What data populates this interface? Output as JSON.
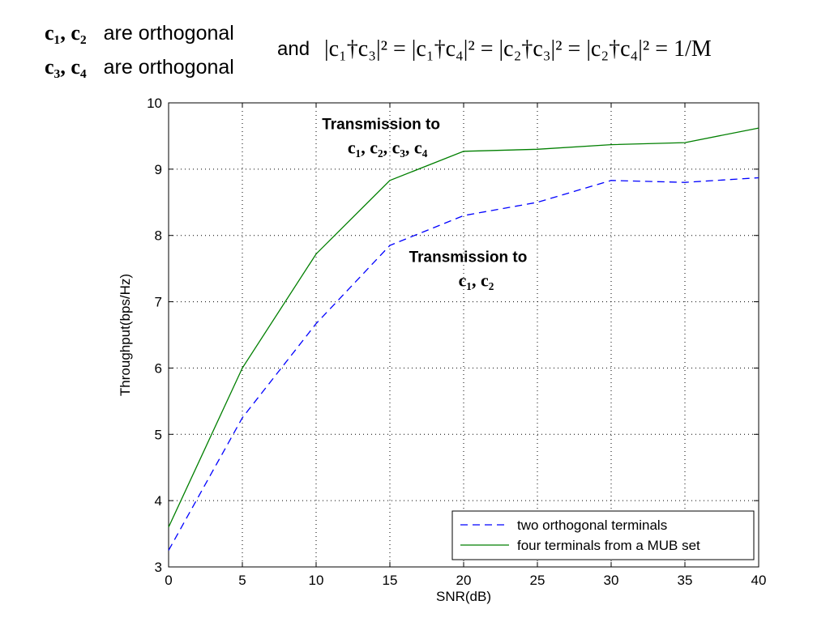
{
  "header": {
    "line1_vectors": "c₁, c₂",
    "line1_text": "are orthogonal",
    "line2_vectors": "c₃, c₄",
    "line2_text": "are orthogonal",
    "and_text": "and",
    "equation": "|c₁†c₃|² = |c₁†c₄|² = |c₂†c₃|² = |c₂†c₄|² = 1/M"
  },
  "chart_data": {
    "type": "line",
    "title": "",
    "xlabel": "SNR(dB)",
    "ylabel": "Throughput(bps/Hz)",
    "xlim": [
      0,
      40
    ],
    "ylim": [
      3,
      10
    ],
    "xticks": [
      0,
      5,
      10,
      15,
      20,
      25,
      30,
      35,
      40
    ],
    "yticks": [
      3,
      4,
      5,
      6,
      7,
      8,
      9,
      10
    ],
    "grid": true,
    "legend_position": "bottom-right",
    "x": [
      0,
      5,
      10,
      15,
      20,
      25,
      30,
      35,
      40
    ],
    "series": [
      {
        "name": "two orthogonal terminals",
        "values": [
          3.25,
          5.25,
          6.67,
          7.85,
          8.3,
          8.5,
          8.83,
          8.8,
          8.87
        ],
        "color": "#0000ff",
        "style": "dashed"
      },
      {
        "name": "four terminals from a MUB set",
        "values": [
          3.6,
          6.0,
          7.72,
          8.83,
          9.27,
          9.3,
          9.37,
          9.4,
          9.62
        ],
        "color": "#007f00",
        "style": "solid"
      }
    ],
    "annotations": [
      {
        "title": "Transmission to",
        "vectors": "c₁, c₂, c₃, c₄",
        "x": 14.4,
        "y": 9.6
      },
      {
        "title": "Transmission to",
        "vectors": "c₁, c₂",
        "x": 20.3,
        "y": 7.6
      }
    ]
  }
}
